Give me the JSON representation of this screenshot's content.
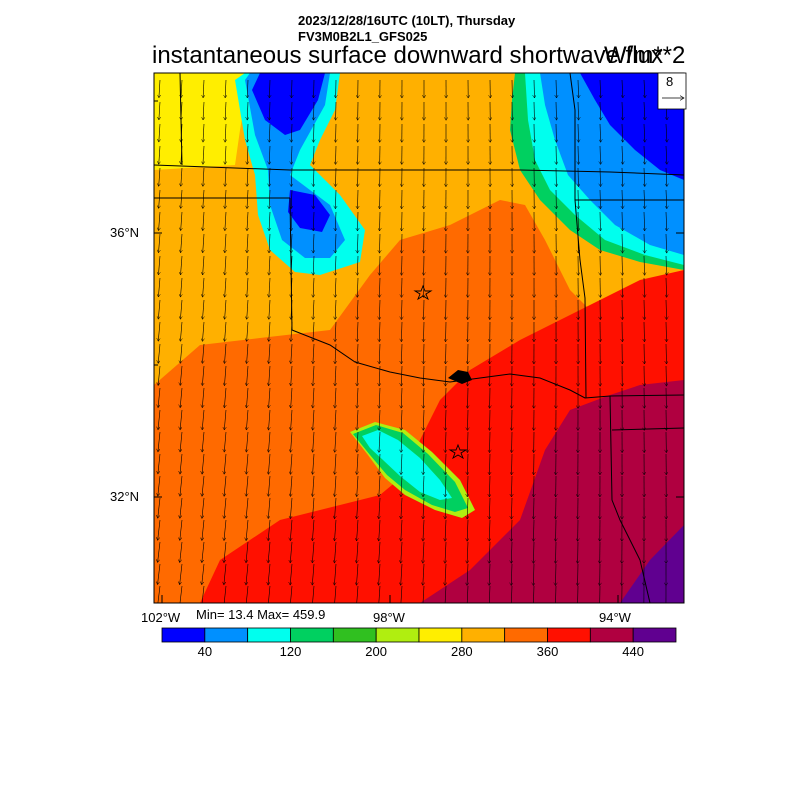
{
  "header": {
    "datetime_line": "2023/12/28/16UTC (10LT), Thursday",
    "model_line": "FV3M0B2L1_GFS025",
    "title": "instantaneous surface downward shortwave flux",
    "units": "W/m**2"
  },
  "map": {
    "lat_labels": [
      "36°N",
      "32°N"
    ],
    "lon_labels": [
      "102°W",
      "98°W",
      "94°W"
    ],
    "ref_vector_value": "8",
    "stats": "Min= 13.4 Max= 459.9"
  },
  "colorbar": {
    "labels": [
      "40",
      "120",
      "200",
      "280",
      "360",
      "440"
    ],
    "colors": [
      "#0000ff",
      "#0090ff",
      "#00ffee",
      "#00d060",
      "#30c020",
      "#b0ee10",
      "#ffee00",
      "#ffb000",
      "#ff6a00",
      "#ff1000",
      "#b00040",
      "#600090"
    ]
  }
}
